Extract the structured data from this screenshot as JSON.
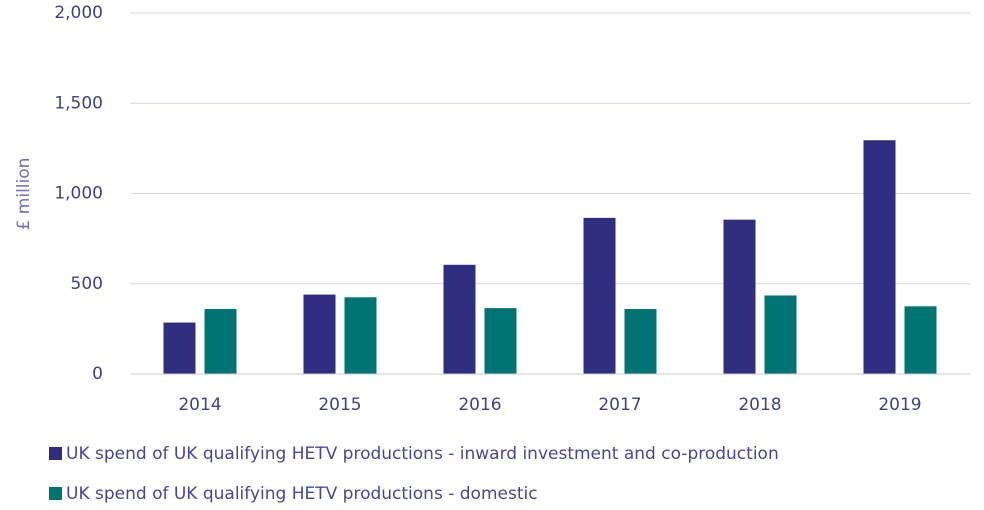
{
  "chart_data": {
    "type": "bar",
    "y_label": "£ million",
    "categories": [
      "2014",
      "2015",
      "2016",
      "2017",
      "2018",
      "2019"
    ],
    "series": [
      {
        "name": "UK spend of UK qualifying HETV productions - inward investment and co-production",
        "color": "#2e2d80",
        "values": [
          285,
          440,
          605,
          865,
          855,
          1295
        ]
      },
      {
        "name": "UK spend of UK qualifying HETV productions - domestic",
        "color": "#007373",
        "values": [
          360,
          425,
          365,
          360,
          435,
          375
        ]
      }
    ],
    "ylim": [
      0,
      2000
    ],
    "yticks": [
      0,
      500,
      {
        "value": 1000,
        "label": "1,000"
      },
      {
        "value": 1500,
        "label": "1,500"
      },
      {
        "value": 2000,
        "label": "2,000"
      }
    ],
    "grid": true,
    "legend": "bottom"
  }
}
